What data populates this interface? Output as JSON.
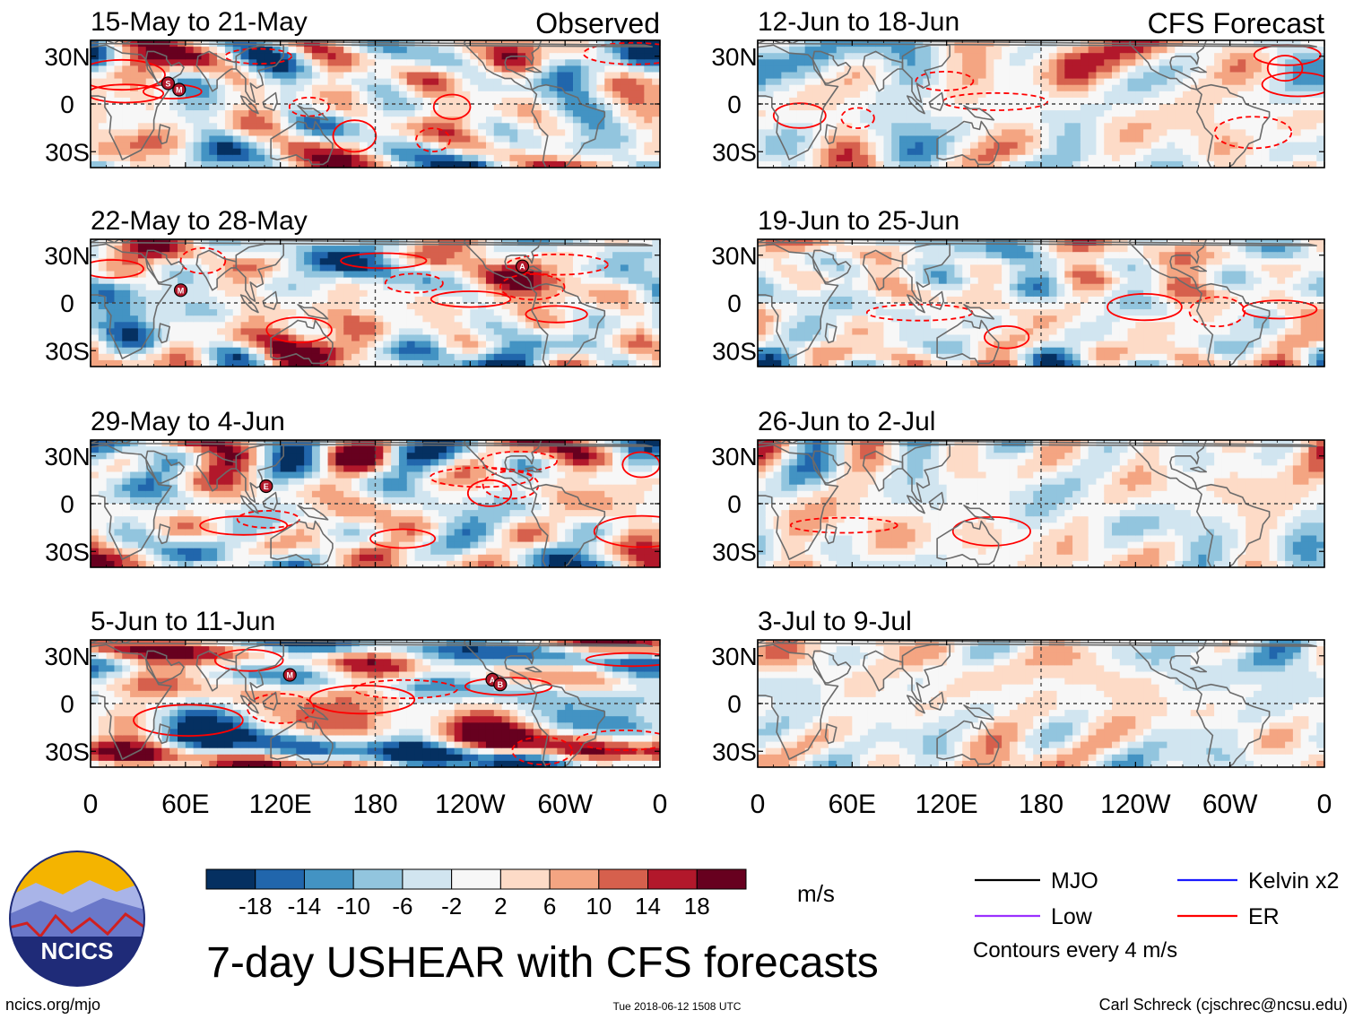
{
  "chart_data": {
    "type": "heatmap",
    "title": "7-day USHEAR with CFS forecasts",
    "variable": "USHEAR",
    "units": "m/s",
    "left_column_label": "Observed",
    "right_column_label": "CFS Forecast",
    "x_tick_labels": [
      "0",
      "60E",
      "120E",
      "180",
      "120W",
      "60W",
      "0"
    ],
    "x_tick_values_deg": [
      0,
      60,
      120,
      180,
      240,
      300,
      360
    ],
    "y_tick_labels": [
      "30N",
      "0",
      "30S"
    ],
    "y_tick_values_deg": [
      30,
      0,
      -30
    ],
    "xlim_deg": [
      0,
      360
    ],
    "ylim_deg": [
      -40,
      40
    ],
    "colorbar": {
      "levels": [
        -22,
        -18,
        -14,
        -10,
        -6,
        -2,
        2,
        6,
        10,
        14,
        18,
        22
      ],
      "tick_labels": [
        "-18",
        "-14",
        "-10",
        "-6",
        "-2",
        "2",
        "6",
        "10",
        "14",
        "18"
      ],
      "colors": [
        "#053061",
        "#2166ac",
        "#4393c3",
        "#92c5de",
        "#d1e5f0",
        "#f7f7f7",
        "#fddbc7",
        "#f4a582",
        "#d6604d",
        "#b2182b",
        "#67001f"
      ]
    },
    "legend": {
      "entries": [
        {
          "label": "MJO",
          "color": "#000000"
        },
        {
          "label": "Kelvin x2",
          "color": "#1a1aff"
        },
        {
          "label": "Low",
          "color": "#9b30ff"
        },
        {
          "label": "ER",
          "color": "#ff0000"
        }
      ],
      "note": "Contours every 4 m/s"
    },
    "panels": [
      {
        "title": "15-May to 21-May",
        "column": "observed",
        "storms": [
          {
            "label": "S",
            "lon": 49,
            "lat": 13
          },
          {
            "label": "M",
            "lon": 56,
            "lat": 9
          }
        ]
      },
      {
        "title": "22-May to 28-May",
        "column": "observed",
        "storms": [
          {
            "label": "M",
            "lon": 57,
            "lat": 8
          },
          {
            "label": "A",
            "lon": 273,
            "lat": 23
          }
        ]
      },
      {
        "title": "29-May to 4-Jun",
        "column": "observed",
        "storms": [
          {
            "label": "E",
            "lon": 111,
            "lat": 11
          }
        ]
      },
      {
        "title": "5-Jun to 11-Jun",
        "column": "observed",
        "storms": [
          {
            "label": "M",
            "lon": 126,
            "lat": 18
          },
          {
            "label": "A",
            "lon": 254,
            "lat": 15
          },
          {
            "label": "B",
            "lon": 259,
            "lat": 12
          }
        ]
      },
      {
        "title": "12-Jun to 18-Jun",
        "column": "forecast",
        "storms": []
      },
      {
        "title": "19-Jun to 25-Jun",
        "column": "forecast",
        "storms": []
      },
      {
        "title": "26-Jun to 2-Jul",
        "column": "forecast",
        "storms": []
      },
      {
        "title": "3-Jul to 9-Jul",
        "column": "forecast",
        "storms": []
      }
    ]
  },
  "footer": {
    "logo_text": "NCICS",
    "url": "ncics.org/mjo",
    "timestamp": "Tue 2018-06-12 1508 UTC",
    "credit": "Carl Schreck (cjschrec@ncsu.edu)"
  }
}
